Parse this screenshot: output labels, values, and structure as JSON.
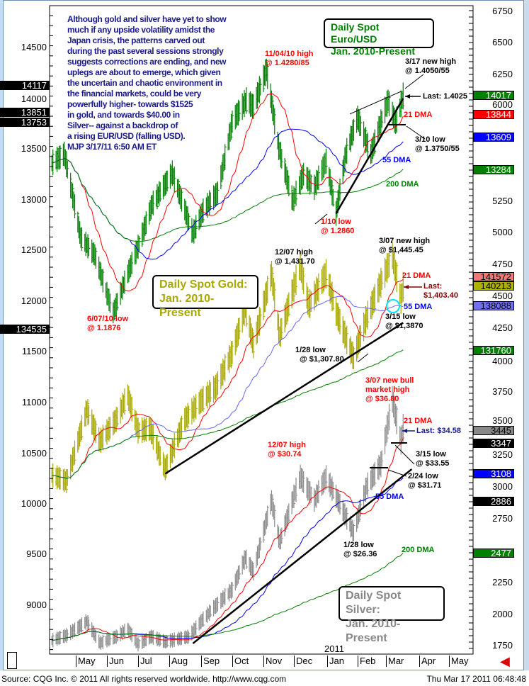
{
  "commentary": [
    "Although gold and silver have yet to show",
    "much if any upside volatility amidst the",
    "Japan crisis, the patterns carved out",
    "during the past several sessions strongly",
    "suggests corrections are ending, and new",
    "uplegs are about to emerge, which given",
    "the uncertain and chaotic environment in",
    "the financial markets, could be very",
    "powerfully higher- towards $1525",
    "in gold, and towards $40.00 in",
    "Silver-- against a backdrop of",
    "a rising EUR/USD (falling USD).",
    "MJP  3/17/11 6:50 AM ET"
  ],
  "status": {
    "source": "Source: CQG Inc. © 2011 All rights reserved worldwide. http://www.cqg.com",
    "timestamp": "Thu Mar 17 2011 06:48:48"
  },
  "chart_data": {
    "type": "bar",
    "year_label": "2011",
    "x_ticks": [
      "May",
      "Jun",
      "Jul",
      "Aug",
      "Sep",
      "Oct",
      "Nov",
      "Dec",
      "Jan",
      "Feb",
      "Mar",
      "Apr",
      "May"
    ],
    "left_axis_ticks": [
      "14500",
      "14000",
      "13500",
      "13000",
      "12500",
      "12000",
      "11500",
      "11000",
      "10500",
      "10000",
      "9500",
      "9000"
    ],
    "right_axis_ticks": [
      "6750",
      "6500",
      "6250",
      "6000",
      "5250",
      "5000",
      "4750",
      "4500",
      "4250",
      "4000",
      "3750",
      "3500",
      "3250",
      "3000",
      "2750",
      "2250",
      "2000",
      "1750"
    ],
    "left_markers": [
      "14117",
      "13851",
      "13753",
      "134535"
    ],
    "right_markers": [
      {
        "value": "14017",
        "color": "#008000"
      },
      {
        "value": "13844",
        "color": "#ff0000"
      },
      {
        "value": "13609",
        "color": "#0000ff"
      },
      {
        "value": "13284",
        "color": "#008000"
      },
      {
        "value": "141572",
        "color": "#f07878"
      },
      {
        "value": "140213",
        "color": "#b0b000"
      },
      {
        "value": "138088",
        "color": "#7070f0"
      },
      {
        "value": "131760",
        "color": "#008000"
      },
      {
        "value": "3445",
        "color": "#888888"
      },
      {
        "value": "3347",
        "color": "#000000"
      },
      {
        "value": "3108",
        "color": "#0000ff"
      },
      {
        "value": "2886",
        "color": "#000000"
      },
      {
        "value": "2477",
        "color": "#008000"
      }
    ],
    "series": [
      {
        "name": "Daily Spot Euro/USD",
        "subtitle": "Jan. 2010-Present",
        "color": "#008000",
        "ma55_color": "#0000ff",
        "points": [
          [
            "2010-04-08",
            1.336
          ],
          [
            "2010-04-20",
            1.345
          ],
          [
            "2010-05-06",
            1.262
          ],
          [
            "2010-05-20",
            1.245
          ],
          [
            "2010-06-07",
            1.1876
          ],
          [
            "2010-06-22",
            1.229
          ],
          [
            "2010-07-01",
            1.253
          ],
          [
            "2010-07-15",
            1.295
          ],
          [
            "2010-08-04",
            1.326
          ],
          [
            "2010-08-24",
            1.266
          ],
          [
            "2010-09-03",
            1.289
          ],
          [
            "2010-09-17",
            1.307
          ],
          [
            "2010-10-01",
            1.377
          ],
          [
            "2010-10-15",
            1.398
          ],
          [
            "2010-10-22",
            1.392
          ],
          [
            "2010-11-04",
            1.4283
          ],
          [
            "2010-11-16",
            1.352
          ],
          [
            "2010-11-30",
            1.298
          ],
          [
            "2010-12-10",
            1.325
          ],
          [
            "2010-12-20",
            1.312
          ],
          [
            "2010-12-31",
            1.338
          ],
          [
            "2011-01-10",
            1.286
          ],
          [
            "2011-01-20",
            1.345
          ],
          [
            "2011-02-01",
            1.381
          ],
          [
            "2011-02-14",
            1.345
          ],
          [
            "2011-02-24",
            1.376
          ],
          [
            "2011-03-03",
            1.398
          ],
          [
            "2011-03-10",
            1.3752
          ],
          [
            "2011-03-17",
            1.4025
          ]
        ],
        "trendlines": [
          [
            [
              "2011-01-10",
              1.286
            ],
            [
              "2011-03-17",
              1.4
            ]
          ],
          [
            [
              "2011-01-24",
              1.3846
            ],
            [
              "2011-03-15",
              1.407
            ]
          ]
        ]
      },
      {
        "name": "Daily Spot Gold:",
        "subtitle": "Jan. 2010-Present",
        "color": "#a8a800",
        "ma55_color": "#6666ff",
        "points": [
          [
            "2010-04-08",
            1150
          ],
          [
            "2010-04-22",
            1142
          ],
          [
            "2010-05-12",
            1238
          ],
          [
            "2010-05-25",
            1195
          ],
          [
            "2010-06-10",
            1225
          ],
          [
            "2010-06-21",
            1258
          ],
          [
            "2010-07-01",
            1210
          ],
          [
            "2010-07-13",
            1212
          ],
          [
            "2010-07-28",
            1158
          ],
          [
            "2010-08-16",
            1225
          ],
          [
            "2010-09-01",
            1250
          ],
          [
            "2010-09-15",
            1268
          ],
          [
            "2010-10-01",
            1315
          ],
          [
            "2010-10-14",
            1375
          ],
          [
            "2010-10-22",
            1325
          ],
          [
            "2010-11-09",
            1421
          ],
          [
            "2010-11-17",
            1337
          ],
          [
            "2010-12-07",
            1431.7
          ],
          [
            "2010-12-15",
            1378
          ],
          [
            "2010-12-31",
            1421
          ],
          [
            "2011-01-10",
            1370
          ],
          [
            "2011-01-28",
            1307.8
          ],
          [
            "2011-02-10",
            1362
          ],
          [
            "2011-02-22",
            1402
          ],
          [
            "2011-03-07",
            1445.45
          ],
          [
            "2011-03-15",
            1387
          ],
          [
            "2011-03-17",
            1403.4
          ]
        ],
        "trendlines": [
          [
            [
              "2010-07-28",
              1152
            ],
            [
              "2011-03-17",
              1355
            ]
          ]
        ]
      },
      {
        "name": "Daily Spot Silver:",
        "subtitle": "Jan. 2010-Present",
        "color": "#8c8c8c",
        "ma55_color": "#0000ff",
        "points": [
          [
            "2010-04-08",
            17.9
          ],
          [
            "2010-04-22",
            18.3
          ],
          [
            "2010-05-12",
            19.4
          ],
          [
            "2010-05-25",
            17.7
          ],
          [
            "2010-06-10",
            18.2
          ],
          [
            "2010-06-21",
            18.8
          ],
          [
            "2010-07-01",
            17.6
          ],
          [
            "2010-07-14",
            18.2
          ],
          [
            "2010-07-28",
            17.8
          ],
          [
            "2010-08-20",
            18.2
          ],
          [
            "2010-09-01",
            19.4
          ],
          [
            "2010-09-15",
            20.6
          ],
          [
            "2010-10-01",
            21.9
          ],
          [
            "2010-10-14",
            24.4
          ],
          [
            "2010-10-22",
            23.3
          ],
          [
            "2010-11-09",
            28.9
          ],
          [
            "2010-11-17",
            25.6
          ],
          [
            "2010-12-07",
            30.74
          ],
          [
            "2010-12-20",
            28.9
          ],
          [
            "2010-12-31",
            30.7
          ],
          [
            "2011-01-10",
            29.2
          ],
          [
            "2011-01-28",
            26.36
          ],
          [
            "2011-02-10",
            30.0
          ],
          [
            "2011-02-24",
            31.71
          ],
          [
            "2011-03-07",
            36.8
          ],
          [
            "2011-03-15",
            33.55
          ],
          [
            "2011-03-17",
            34.58
          ]
        ],
        "trendlines": [
          [
            [
              "2010-08-24",
              17.67
            ],
            [
              "2011-03-25",
              31.33
            ]
          ]
        ]
      }
    ],
    "moving_averages": [
      {
        "name": "21 DMA",
        "period": 21,
        "color": "#ff0000"
      },
      {
        "name": "55 DMA",
        "period": 55,
        "color": "#0000ff"
      },
      {
        "name": "200 DMA",
        "period": 200,
        "color": "#008000"
      }
    ],
    "annotations": {
      "eur_high": [
        "11/04/10 high",
        "@ 1.4280/85"
      ],
      "eur_new_high": [
        "3/17 new high",
        "@ 1.4050/55"
      ],
      "eur_last": "Last: 1.4025",
      "eur_21": "21 DMA",
      "eur_low310": [
        "3/10 low",
        "@ 1.3750/55"
      ],
      "eur_55": "55 DMA",
      "eur_200": "200 DMA",
      "eur_low110": [
        "1/10 low",
        "@ 1.2860"
      ],
      "eur_low607": [
        "6/07/10 low",
        "@ 1.1876"
      ],
      "gold_high1207": [
        "12/07 high",
        "@ 1,431.70"
      ],
      "gold_new_high": [
        "3/07 new high",
        "@ $1,445.45"
      ],
      "gold_21": "21 DMA",
      "gold_last": [
        "Last:",
        "$1,403.40"
      ],
      "gold_55": "55 DMA",
      "gold_low315": [
        "3/15 low",
        "@ $1,3870"
      ],
      "gold_low128": [
        "1/28 low",
        "@ $1,307.80"
      ],
      "silver_high": [
        "3/07 new bull",
        "market high",
        "@ $36.80"
      ],
      "silver_21": "21 DMA",
      "silver_last": "Last: $34.58",
      "silver_high1207": [
        "12/07 high",
        "@ $30.74"
      ],
      "silver_low315": [
        "3/15 low",
        "@ $33.55"
      ],
      "silver_low224": [
        "2/24 low",
        "@ $31.71"
      ],
      "silver_55": "55 DMA",
      "silver_low128": [
        "1/28 low",
        "@ $26.36"
      ],
      "silver_200": "200 DMA"
    }
  }
}
